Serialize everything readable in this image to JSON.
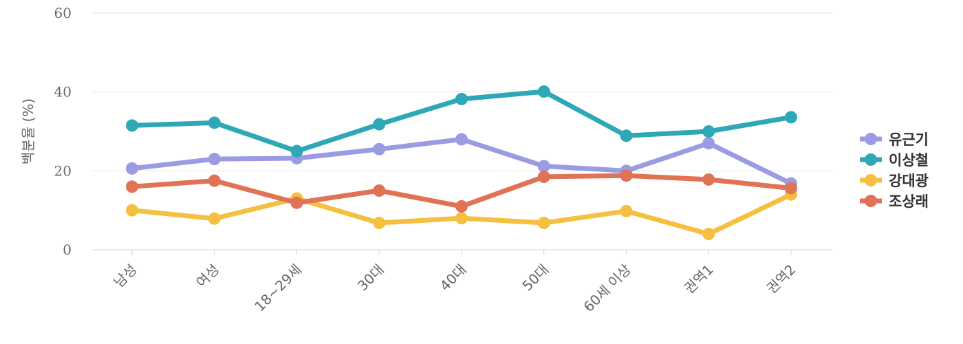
{
  "chart_data": {
    "type": "line",
    "ylabel": "백분율 (%)",
    "ylim": [
      0,
      60
    ],
    "yticks": [
      0,
      20,
      40,
      60
    ],
    "grid": true,
    "legend_position": "right",
    "categories": [
      "남성",
      "여성",
      "18~29세",
      "30대",
      "40대",
      "50대",
      "60세 이상",
      "권역1",
      "권역2"
    ],
    "series": [
      {
        "name": "유근기",
        "color": "#9b9be3",
        "values": [
          20.6,
          23.0,
          23.2,
          25.5,
          28.0,
          21.2,
          20.0,
          27.0,
          16.8
        ]
      },
      {
        "name": "이상철",
        "color": "#2ea8b6",
        "values": [
          31.5,
          32.2,
          25.0,
          31.8,
          38.2,
          40.1,
          28.9,
          30.0,
          33.6
        ]
      },
      {
        "name": "강대광",
        "color": "#f5c040",
        "values": [
          10.0,
          7.9,
          13.0,
          6.8,
          8.0,
          6.8,
          9.8,
          4.0,
          14.0
        ]
      },
      {
        "name": "조상래",
        "color": "#e07256",
        "values": [
          16.0,
          17.5,
          11.9,
          15.0,
          11.0,
          18.5,
          18.8,
          17.8,
          15.6
        ]
      }
    ]
  }
}
